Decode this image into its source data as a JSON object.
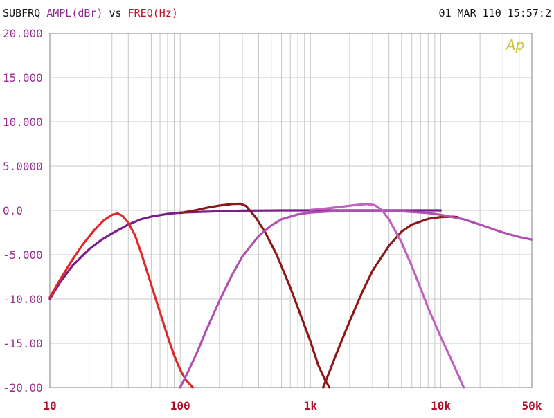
{
  "header": {
    "title_left": "SUBFRQ",
    "y_quantity": "AMPL(dBr)",
    "vs": "vs",
    "x_quantity": "FREQ(Hz)",
    "timestamp": "01 MAR 110 15:57:2"
  },
  "watermark": "Ap",
  "colors": {
    "title_black": "#111111",
    "y_label_purple": "#8a2a8a",
    "x_label_red": "#c0102a",
    "tick_purple": "#9a2f8f",
    "tick_red": "#b0102a",
    "grid": "#c8c8c8",
    "frame": "#808080",
    "watermark": "#c8c83a"
  },
  "chart_data": {
    "type": "line",
    "xscale": "log",
    "xlim": [
      10,
      50000
    ],
    "ylim": [
      -20,
      20
    ],
    "grid": true,
    "x_ticks": [
      {
        "value": 10,
        "label": "10"
      },
      {
        "value": 100,
        "label": "100"
      },
      {
        "value": 1000,
        "label": "1k"
      },
      {
        "value": 10000,
        "label": "10k"
      },
      {
        "value": 50000,
        "label": "50k"
      }
    ],
    "y_ticks": [
      {
        "value": 20,
        "label": "20.000"
      },
      {
        "value": 15,
        "label": "15.000"
      },
      {
        "value": 10,
        "label": "10.000"
      },
      {
        "value": 5,
        "label": "5.0000"
      },
      {
        "value": 0,
        "label": "0.0"
      },
      {
        "value": -5,
        "label": "-5.000"
      },
      {
        "value": -10,
        "label": "-10.00"
      },
      {
        "value": -15,
        "label": "-15.00"
      },
      {
        "value": -20,
        "label": "-20.00"
      }
    ],
    "series": [
      {
        "color": "#7a1e8a",
        "points": [
          [
            10,
            -10.0
          ],
          [
            12,
            -8.1
          ],
          [
            15,
            -6.2
          ],
          [
            20,
            -4.4
          ],
          [
            25,
            -3.3
          ],
          [
            30,
            -2.6
          ],
          [
            40,
            -1.6
          ],
          [
            50,
            -1.0
          ],
          [
            60,
            -0.7
          ],
          [
            80,
            -0.4
          ],
          [
            100,
            -0.25
          ],
          [
            200,
            -0.1
          ],
          [
            300,
            -0.03
          ],
          [
            600,
            0
          ],
          [
            1000,
            0
          ],
          [
            5000,
            0
          ],
          [
            10000,
            0
          ]
        ]
      },
      {
        "color": "#e02828",
        "points": [
          [
            10,
            -9.8
          ],
          [
            12,
            -7.8
          ],
          [
            15,
            -5.5
          ],
          [
            18,
            -3.8
          ],
          [
            22,
            -2.2
          ],
          [
            26,
            -1.1
          ],
          [
            30,
            -0.5
          ],
          [
            33,
            -0.35
          ],
          [
            36,
            -0.6
          ],
          [
            40,
            -1.4
          ],
          [
            45,
            -2.8
          ],
          [
            50,
            -4.7
          ],
          [
            60,
            -8.4
          ],
          [
            70,
            -11.5
          ],
          [
            80,
            -14.2
          ],
          [
            90,
            -16.4
          ],
          [
            100,
            -18.0
          ],
          [
            110,
            -19.1
          ],
          [
            125,
            -20.0
          ]
        ]
      },
      {
        "color": "#8a1818",
        "points": [
          [
            100,
            -0.3
          ],
          [
            130,
            0
          ],
          [
            160,
            0.3
          ],
          [
            200,
            0.55
          ],
          [
            250,
            0.72
          ],
          [
            290,
            0.75
          ],
          [
            320,
            0.5
          ],
          [
            380,
            -0.8
          ],
          [
            450,
            -2.5
          ],
          [
            550,
            -5.0
          ],
          [
            700,
            -8.7
          ],
          [
            850,
            -12.0
          ],
          [
            1000,
            -14.8
          ],
          [
            1150,
            -17.5
          ],
          [
            1300,
            -19.2
          ],
          [
            1400,
            -20.0
          ]
        ]
      },
      {
        "color": "#8a1818",
        "points": [
          [
            1250,
            -20.0
          ],
          [
            1400,
            -18.2
          ],
          [
            1600,
            -16.0
          ],
          [
            2000,
            -12.5
          ],
          [
            2500,
            -9.2
          ],
          [
            3000,
            -6.8
          ],
          [
            4000,
            -4.0
          ],
          [
            5000,
            -2.4
          ],
          [
            6000,
            -1.6
          ],
          [
            8000,
            -0.95
          ],
          [
            10000,
            -0.75
          ],
          [
            12000,
            -0.7
          ],
          [
            13500,
            -0.75
          ]
        ]
      },
      {
        "color": "#b050b0",
        "points": [
          [
            100,
            -20.0
          ],
          [
            115,
            -18.2
          ],
          [
            135,
            -16.0
          ],
          [
            160,
            -13.4
          ],
          [
            200,
            -10.2
          ],
          [
            250,
            -7.3
          ],
          [
            300,
            -5.2
          ],
          [
            400,
            -2.9
          ],
          [
            500,
            -1.7
          ],
          [
            600,
            -1.0
          ],
          [
            800,
            -0.45
          ],
          [
            1000,
            -0.25
          ],
          [
            1500,
            -0.1
          ],
          [
            2000,
            -0.05
          ],
          [
            3000,
            -0.05
          ],
          [
            5000,
            -0.1
          ],
          [
            8000,
            -0.3
          ],
          [
            10000,
            -0.5
          ],
          [
            15000,
            -1.0
          ],
          [
            20000,
            -1.6
          ],
          [
            30000,
            -2.5
          ],
          [
            40000,
            -3.0
          ],
          [
            50000,
            -3.3
          ]
        ]
      },
      {
        "color": "#c060c0",
        "points": [
          [
            1000,
            0.05
          ],
          [
            1300,
            0.2
          ],
          [
            1700,
            0.4
          ],
          [
            2200,
            0.6
          ],
          [
            2700,
            0.72
          ],
          [
            3100,
            0.6
          ],
          [
            3500,
            0.1
          ],
          [
            4000,
            -1.0
          ],
          [
            5000,
            -3.6
          ],
          [
            6000,
            -6.3
          ],
          [
            7000,
            -8.8
          ],
          [
            8000,
            -11.0
          ],
          [
            10000,
            -14.3
          ],
          [
            12000,
            -16.8
          ],
          [
            14000,
            -19.0
          ],
          [
            15000,
            -20.0
          ]
        ]
      }
    ]
  }
}
